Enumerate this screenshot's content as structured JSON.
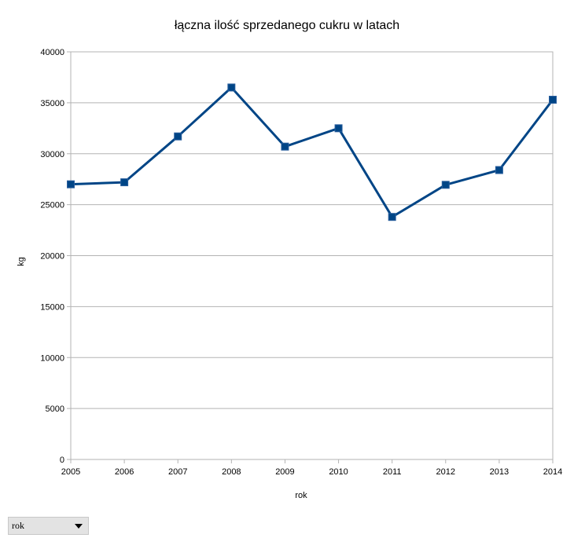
{
  "chart_data": {
    "type": "line",
    "title": "łączna ilość sprzedanego cukru w latach",
    "xlabel": "rok",
    "ylabel": "kg",
    "categories": [
      "2005",
      "2006",
      "2007",
      "2008",
      "2009",
      "2010",
      "2011",
      "2012",
      "2013",
      "2014"
    ],
    "values": [
      27000,
      27200,
      31700,
      36500,
      30700,
      32500,
      23800,
      26950,
      28400,
      35300
    ],
    "ylim": [
      0,
      40000
    ],
    "yticks": [
      "0",
      "5000",
      "10000",
      "15000",
      "20000",
      "25000",
      "30000",
      "35000",
      "40000"
    ],
    "grid": true,
    "legend": "none",
    "line_color": "#004586",
    "marker": "square"
  },
  "controls": {
    "field_dropdown_label": "rok"
  }
}
